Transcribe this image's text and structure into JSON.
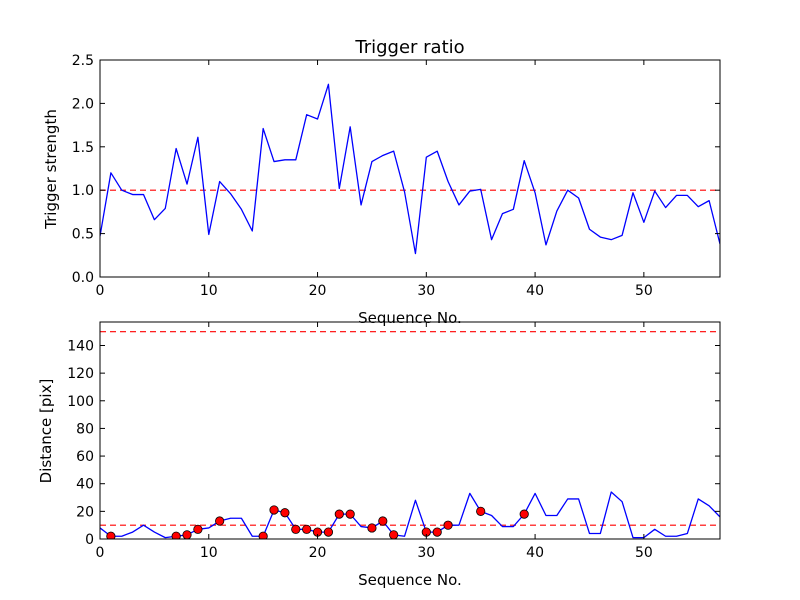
{
  "chart_data": [
    {
      "type": "line",
      "title": "Trigger ratio",
      "xlabel": "Sequence No.",
      "ylabel": "Trigger strength",
      "xlim": [
        0,
        57
      ],
      "ylim": [
        0,
        2.5
      ],
      "xticks": [
        0,
        10,
        20,
        30,
        40,
        50
      ],
      "yticks": [
        0.0,
        0.5,
        1.0,
        1.5,
        2.0,
        2.5
      ],
      "xtick_labels": [
        "0",
        "10",
        "20",
        "30",
        "40",
        "50"
      ],
      "ytick_labels": [
        "0.0",
        "0.5",
        "1.0",
        "1.5",
        "2.0",
        "2.5"
      ],
      "grid": false,
      "line_color": "#0000ff",
      "threshold_color": "#ff0000",
      "thresholds": [
        1.0
      ],
      "series": [
        {
          "x": [
            0,
            1,
            2,
            3,
            4,
            5,
            6,
            7,
            8,
            9,
            10,
            11,
            12,
            13,
            14,
            15,
            16,
            17,
            18,
            19,
            20,
            21,
            22,
            23,
            24,
            25,
            26,
            27,
            28,
            29,
            30,
            31,
            32,
            33,
            34,
            35,
            36,
            37,
            38,
            39,
            40,
            41,
            42,
            43,
            44,
            45,
            46,
            47,
            48,
            49,
            50,
            51,
            52,
            53,
            54,
            55,
            56,
            57
          ],
          "values": [
            0.47,
            1.2,
            1.0,
            0.95,
            0.95,
            0.66,
            0.79,
            1.48,
            1.07,
            1.61,
            0.49,
            1.1,
            0.96,
            0.78,
            0.53,
            1.71,
            1.33,
            1.35,
            1.35,
            1.87,
            1.82,
            2.22,
            1.02,
            1.73,
            0.83,
            1.33,
            1.4,
            1.45,
            0.98,
            0.27,
            1.38,
            1.45,
            1.1,
            0.83,
            0.99,
            1.01,
            0.43,
            0.73,
            0.78,
            1.34,
            0.97,
            0.37,
            0.76,
            1.0,
            0.91,
            0.55,
            0.46,
            0.43,
            0.48,
            0.97,
            0.63,
            0.99,
            0.8,
            0.94,
            0.94,
            0.81,
            0.88,
            0.38
          ]
        }
      ]
    },
    {
      "type": "line",
      "title": "",
      "xlabel": "Sequence No.",
      "ylabel": "Distance [pix]",
      "xlim": [
        0,
        57
      ],
      "ylim": [
        0,
        157
      ],
      "xticks": [
        0,
        10,
        20,
        30,
        40,
        50
      ],
      "yticks": [
        0,
        20,
        40,
        60,
        80,
        100,
        120,
        140
      ],
      "xtick_labels": [
        "0",
        "10",
        "20",
        "30",
        "40",
        "50"
      ],
      "ytick_labels": [
        "0",
        "20",
        "40",
        "60",
        "80",
        "100",
        "120",
        "140"
      ],
      "grid": false,
      "line_color": "#0000ff",
      "threshold_color": "#ff0000",
      "marker_color": "#ff0000",
      "thresholds": [
        10,
        150
      ],
      "series": [
        {
          "x": [
            0,
            1,
            2,
            3,
            4,
            5,
            6,
            7,
            8,
            9,
            10,
            11,
            12,
            13,
            14,
            15,
            16,
            17,
            18,
            19,
            20,
            21,
            22,
            23,
            24,
            25,
            26,
            27,
            28,
            29,
            30,
            31,
            32,
            33,
            34,
            35,
            36,
            37,
            38,
            39,
            40,
            41,
            42,
            43,
            44,
            45,
            46,
            47,
            48,
            49,
            50,
            51,
            52,
            53,
            54,
            55,
            56,
            57
          ],
          "values": [
            8,
            2,
            2,
            5,
            10,
            5,
            1,
            2,
            3,
            7,
            8,
            13,
            15,
            15,
            2,
            2,
            21,
            19,
            7,
            7,
            5,
            5,
            18,
            18,
            9,
            8,
            13,
            3,
            2,
            28,
            5,
            5,
            10,
            10,
            33,
            20,
            17,
            9,
            9,
            18,
            33,
            17,
            17,
            29,
            29,
            4,
            4,
            34,
            27,
            1,
            1,
            7,
            2,
            2,
            4,
            29,
            24,
            16
          ]
        }
      ],
      "highlighted_points": {
        "x": [
          1,
          7,
          8,
          9,
          11,
          15,
          16,
          17,
          18,
          19,
          20,
          21,
          22,
          23,
          25,
          26,
          27,
          30,
          31,
          32,
          35,
          39
        ],
        "values": [
          2,
          2,
          3,
          7,
          13,
          2,
          21,
          19,
          7,
          7,
          5,
          5,
          18,
          18,
          8,
          13,
          3,
          5,
          5,
          10,
          20,
          18
        ]
      }
    }
  ]
}
